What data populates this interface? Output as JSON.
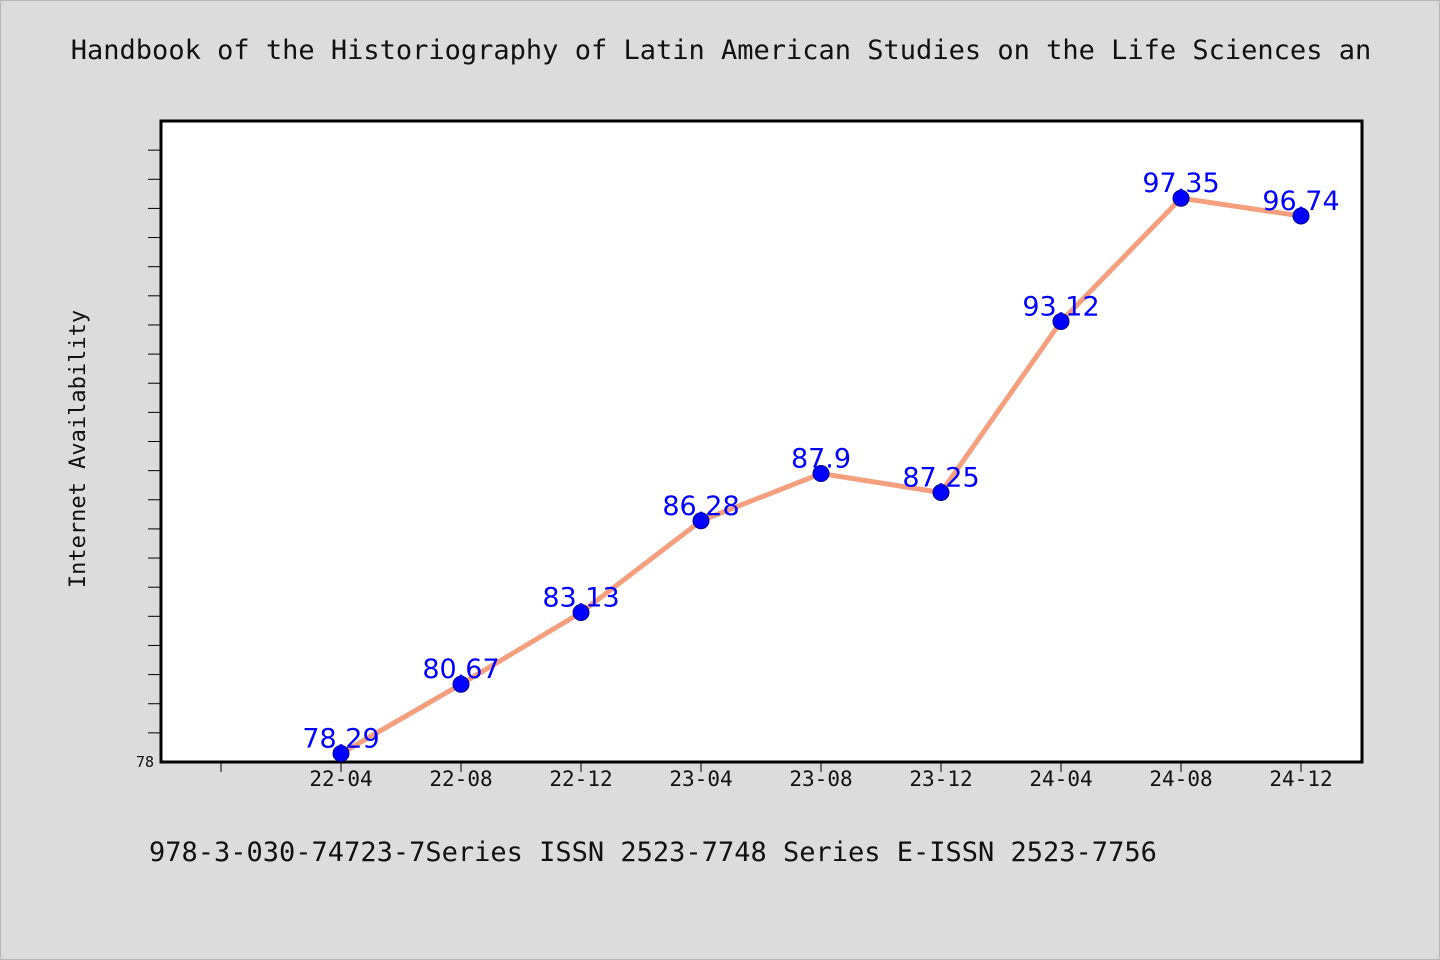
{
  "chart_data": {
    "type": "line",
    "title": "Handbook of the Historiography of Latin American Studies on the Life Sciences an",
    "footer": "978-3-030-74723-7Series ISSN 2523-7748 Series E-ISSN 2523-7756",
    "xlabel": "",
    "ylabel": "Internet Availability",
    "categories": [
      "22-04",
      "22-08",
      "22-12",
      "23-04",
      "23-08",
      "23-12",
      "24-04",
      "24-08",
      "24-12"
    ],
    "series": [
      {
        "values": [
          78.29,
          80.67,
          83.13,
          86.28,
          87.9,
          87.25,
          93.12,
          97.35,
          96.74
        ],
        "data_labels": [
          "78.29",
          "80.67",
          "83.13",
          "86.28",
          "87.9",
          "87.25",
          "93.12",
          "97.35",
          "96.74"
        ],
        "line_color": "#f4a07e",
        "marker_color": "#0000ff",
        "label_color": "#0000ff"
      }
    ],
    "y_tick_labels": [
      "78"
    ],
    "ylim": [
      78,
      100
    ],
    "grid": false,
    "legend": "none"
  }
}
